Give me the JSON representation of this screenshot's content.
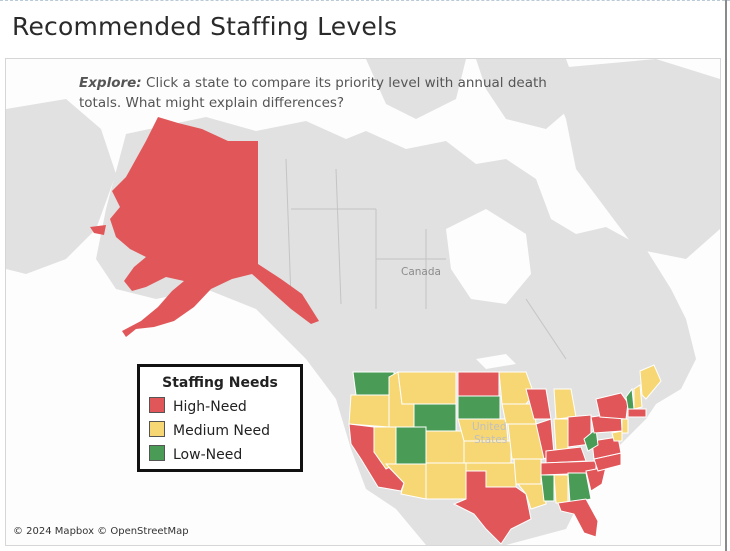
{
  "header": {
    "title": "Recommended Staffing Levels"
  },
  "map": {
    "explore_label": "Explore:",
    "explore_text": "Click a state to compare its priority level with annual death totals. What might explain differences?",
    "country_label": "Canada",
    "us_label_line1": "United",
    "us_label_line2": "States",
    "credit": "© 2024 Mapbox © OpenStreetMap"
  },
  "legend": {
    "title": "Staffing Needs",
    "items": [
      {
        "label": "High-Need",
        "color": "#e15759"
      },
      {
        "label": "Medium Need",
        "color": "#f7d774"
      },
      {
        "label": "Low-Need",
        "color": "#499b55"
      }
    ]
  },
  "colors": {
    "high": "#e15759",
    "medium": "#f7d774",
    "low": "#499b55",
    "land": "#e1e1e1",
    "water": "#fdfdfd"
  },
  "states": [
    {
      "name": "Alaska",
      "need": "high"
    },
    {
      "name": "Washington",
      "need": "low"
    },
    {
      "name": "Oregon",
      "need": "medium"
    },
    {
      "name": "California",
      "need": "high"
    },
    {
      "name": "Idaho",
      "need": "medium"
    },
    {
      "name": "Nevada",
      "need": "medium"
    },
    {
      "name": "Utah",
      "need": "low"
    },
    {
      "name": "Arizona",
      "need": "medium"
    },
    {
      "name": "Montana",
      "need": "medium"
    },
    {
      "name": "Wyoming",
      "need": "low"
    },
    {
      "name": "Colorado",
      "need": "medium"
    },
    {
      "name": "New Mexico",
      "need": "medium"
    },
    {
      "name": "North Dakota",
      "need": "high"
    },
    {
      "name": "South Dakota",
      "need": "low"
    },
    {
      "name": "Nebraska",
      "need": "medium"
    },
    {
      "name": "Kansas",
      "need": "medium"
    },
    {
      "name": "Oklahoma",
      "need": "medium"
    },
    {
      "name": "Texas",
      "need": "high"
    },
    {
      "name": "Minnesota",
      "need": "medium"
    },
    {
      "name": "Iowa",
      "need": "medium"
    },
    {
      "name": "Missouri",
      "need": "medium"
    },
    {
      "name": "Arkansas",
      "need": "medium"
    },
    {
      "name": "Louisiana",
      "need": "medium"
    },
    {
      "name": "Wisconsin",
      "need": "high"
    },
    {
      "name": "Illinois",
      "need": "high"
    },
    {
      "name": "Michigan",
      "need": "medium"
    },
    {
      "name": "Indiana",
      "need": "medium"
    },
    {
      "name": "Ohio",
      "need": "high"
    },
    {
      "name": "Kentucky",
      "need": "high"
    },
    {
      "name": "Tennessee",
      "need": "high"
    },
    {
      "name": "Mississippi",
      "need": "low"
    },
    {
      "name": "Alabama",
      "need": "medium"
    },
    {
      "name": "Georgia",
      "need": "low"
    },
    {
      "name": "Florida",
      "need": "high"
    },
    {
      "name": "South Carolina",
      "need": "high"
    },
    {
      "name": "North Carolina",
      "need": "high"
    },
    {
      "name": "Virginia",
      "need": "high"
    },
    {
      "name": "West Virginia",
      "need": "low"
    },
    {
      "name": "Pennsylvania",
      "need": "high"
    },
    {
      "name": "New York",
      "need": "high"
    },
    {
      "name": "Maryland",
      "need": "medium"
    },
    {
      "name": "New Jersey",
      "need": "medium"
    },
    {
      "name": "Vermont",
      "need": "low"
    },
    {
      "name": "New Hampshire",
      "need": "medium"
    },
    {
      "name": "Maine",
      "need": "medium"
    },
    {
      "name": "Massachusetts",
      "need": "high"
    }
  ]
}
